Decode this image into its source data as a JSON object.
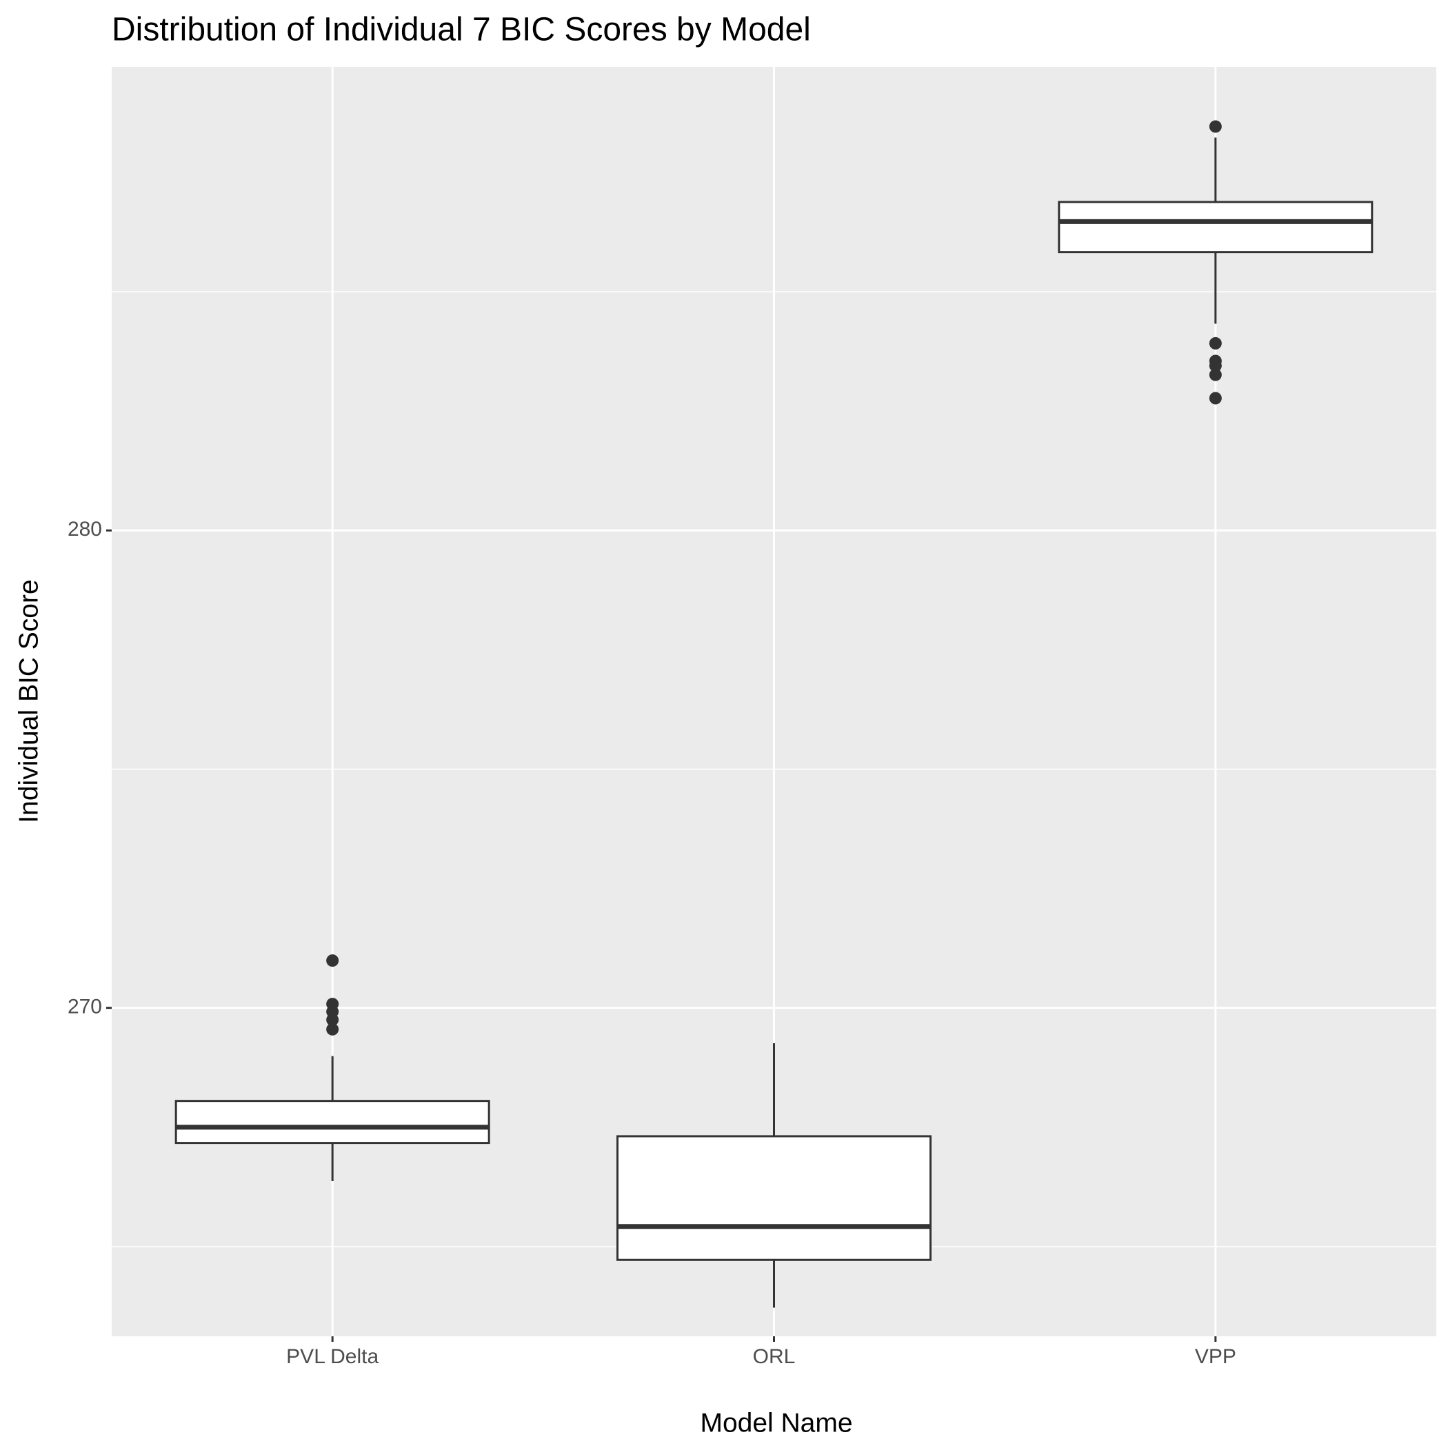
{
  "chart_data": {
    "type": "box",
    "title": "Distribution of Individual 7 BIC Scores by Model",
    "x_label": "Model Name",
    "y_label": "Individual BIC Score",
    "categories": [
      "PVL Delta",
      "ORL",
      "VPP"
    ],
    "boxes": [
      {
        "whisker_low": 266.37,
        "q1": 267.17,
        "median": 267.5,
        "q3": 268.05,
        "whisker_high": 268.99,
        "outliers": [
          270.99,
          270.08,
          269.92,
          269.75,
          269.55
        ]
      },
      {
        "whisker_low": 263.72,
        "q1": 264.72,
        "median": 265.42,
        "q3": 267.31,
        "whisker_high": 269.26,
        "outliers": []
      },
      {
        "whisker_low": 284.33,
        "q1": 285.83,
        "median": 286.47,
        "q3": 286.88,
        "whisker_high": 288.23,
        "outliers": [
          288.46,
          283.92,
          283.55,
          283.45,
          283.26,
          282.77
        ]
      }
    ],
    "box_fill": "#ffffff",
    "line_color": "#333333",
    "ylim": [
      263.12,
      289.71
    ],
    "yticks": [
      270,
      280
    ],
    "minor_yticks": [
      265,
      275,
      285
    ],
    "grid": true,
    "panel_background": "#ebebeb"
  }
}
